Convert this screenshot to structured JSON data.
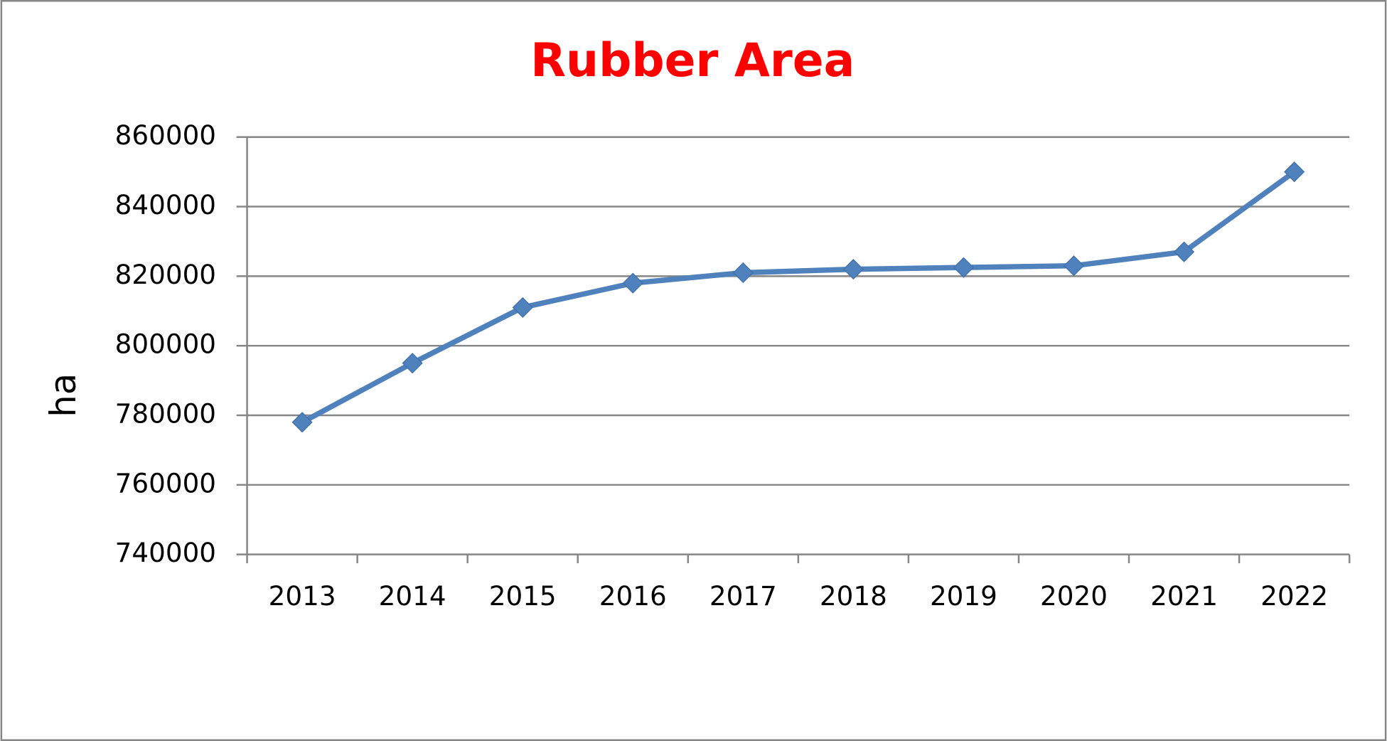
{
  "chart_data": {
    "type": "line",
    "title": "Rubber Area",
    "y_label": "ha",
    "categories": [
      "2013",
      "2014",
      "2015",
      "2016",
      "2017",
      "2018",
      "2019",
      "2020",
      "2021",
      "2022"
    ],
    "values": [
      778000,
      795000,
      811000,
      818000,
      821000,
      822000,
      822500,
      823000,
      827000,
      850000
    ],
    "color": "#4f81bd",
    "title_color": "#ff0000",
    "ylim": [
      740000,
      860000
    ],
    "yticks": [
      740000,
      760000,
      780000,
      800000,
      820000,
      840000,
      860000
    ],
    "grid": true,
    "marker": "diamond"
  }
}
